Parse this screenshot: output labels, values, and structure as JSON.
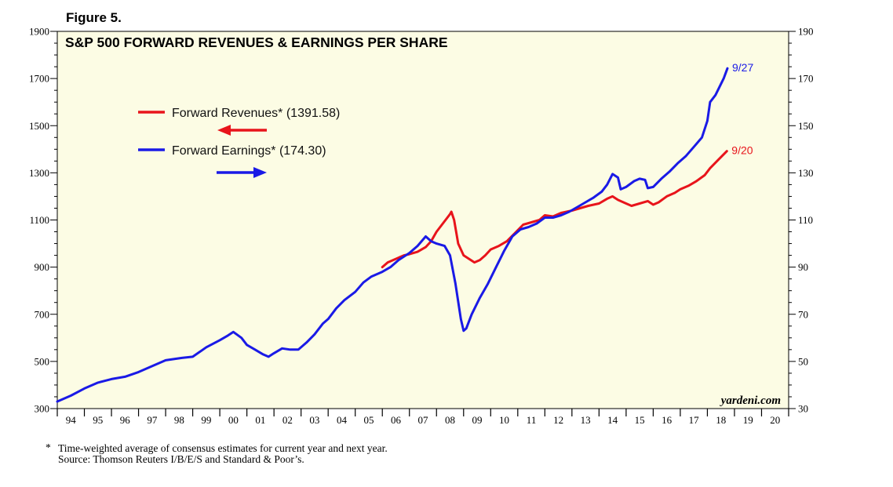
{
  "figure_label": "Figure 5.",
  "footnote_star": "*",
  "footnote": "Time-weighted average of consensus estimates for current year and next year.",
  "source": "Source: Thomson Reuters I/B/E/S and Standard & Poor’s.",
  "brand": "yardeni.com",
  "colors": {
    "revenues": "#e8141b",
    "earnings": "#1a1ae6",
    "plot_bg": "#fcfce4"
  },
  "chart_data": {
    "type": "line",
    "title": "S&P 500 FORWARD REVENUES & EARNINGS PER SHARE",
    "x_range": [
      1994.0,
      2021.0
    ],
    "y_left_range": [
      300,
      1900
    ],
    "y_right_range": [
      30,
      190
    ],
    "y_left_ticks": [
      "300",
      "500",
      "700",
      "900",
      "1100",
      "1300",
      "1500",
      "1700",
      "1900"
    ],
    "y_right_ticks": [
      "30",
      "50",
      "70",
      "90",
      "110",
      "130",
      "150",
      "170",
      "190"
    ],
    "x_tick_labels": [
      "94",
      "95",
      "96",
      "97",
      "98",
      "99",
      "00",
      "01",
      "02",
      "03",
      "04",
      "05",
      "06",
      "07",
      "08",
      "09",
      "10",
      "11",
      "12",
      "13",
      "14",
      "15",
      "16",
      "17",
      "18",
      "19",
      "20"
    ],
    "legend": [
      {
        "name": "Forward Revenues* (1391.58)",
        "axis": "left",
        "arrow": "left"
      },
      {
        "name": "Forward Earnings* (174.30)",
        "axis": "right",
        "arrow": "right"
      }
    ],
    "series": [
      {
        "name": "Forward Revenues",
        "axis": "left",
        "end_label": "9/20",
        "x": [
          2006.0,
          2006.2,
          2006.5,
          2006.8,
          2007.0,
          2007.3,
          2007.6,
          2007.8,
          2008.0,
          2008.2,
          2008.4,
          2008.5,
          2008.55,
          2008.65,
          2008.8,
          2009.0,
          2009.2,
          2009.4,
          2009.6,
          2009.8,
          2010.0,
          2010.3,
          2010.6,
          2010.9,
          2011.2,
          2011.5,
          2011.8,
          2012.0,
          2012.3,
          2012.6,
          2013.0,
          2013.3,
          2013.6,
          2014.0,
          2014.3,
          2014.5,
          2014.7,
          2015.0,
          2015.2,
          2015.5,
          2015.8,
          2016.0,
          2016.2,
          2016.5,
          2016.8,
          2017.0,
          2017.3,
          2017.6,
          2017.9,
          2018.1,
          2018.4,
          2018.72
        ],
        "y": [
          900,
          920,
          935,
          950,
          955,
          965,
          985,
          1010,
          1050,
          1080,
          1110,
          1125,
          1135,
          1100,
          1000,
          950,
          935,
          920,
          930,
          950,
          975,
          990,
          1010,
          1045,
          1080,
          1090,
          1100,
          1120,
          1115,
          1130,
          1140,
          1150,
          1160,
          1170,
          1190,
          1200,
          1185,
          1170,
          1160,
          1170,
          1180,
          1165,
          1175,
          1200,
          1215,
          1230,
          1245,
          1265,
          1290,
          1320,
          1355,
          1392
        ]
      },
      {
        "name": "Forward Earnings",
        "axis": "right",
        "end_label": "9/27",
        "x": [
          1994.0,
          1994.5,
          1995.0,
          1995.5,
          1996.0,
          1996.5,
          1997.0,
          1997.5,
          1998.0,
          1998.3,
          1998.6,
          1999.0,
          1999.5,
          2000.0,
          2000.3,
          2000.5,
          2000.8,
          2001.0,
          2001.3,
          2001.6,
          2001.8,
          2002.0,
          2002.3,
          2002.6,
          2002.9,
          2003.2,
          2003.5,
          2003.8,
          2004.0,
          2004.3,
          2004.6,
          2005.0,
          2005.3,
          2005.6,
          2006.0,
          2006.3,
          2006.6,
          2007.0,
          2007.3,
          2007.6,
          2007.8,
          2008.0,
          2008.3,
          2008.5,
          2008.7,
          2008.9,
          2009.0,
          2009.1,
          2009.3,
          2009.6,
          2009.9,
          2010.2,
          2010.5,
          2010.8,
          2011.1,
          2011.4,
          2011.7,
          2012.0,
          2012.3,
          2012.6,
          2012.9,
          2013.2,
          2013.5,
          2013.8,
          2014.1,
          2014.3,
          2014.5,
          2014.7,
          2014.8,
          2015.0,
          2015.3,
          2015.5,
          2015.7,
          2015.8,
          2016.0,
          2016.3,
          2016.6,
          2016.9,
          2017.2,
          2017.5,
          2017.8,
          2018.0,
          2018.1,
          2018.3,
          2018.6,
          2018.74
        ],
        "y": [
          33,
          35.5,
          38.5,
          41,
          42.5,
          43.5,
          45.5,
          48,
          50.5,
          51,
          51.5,
          52,
          56,
          59,
          61,
          62.5,
          60,
          57,
          55,
          53,
          52,
          53.5,
          55.5,
          55,
          55,
          58,
          61.5,
          66,
          68,
          72.5,
          76,
          79.5,
          83.5,
          86,
          88,
          90,
          93,
          96,
          99,
          103,
          101,
          100,
          99,
          95,
          83,
          68,
          63,
          64,
          70,
          77,
          83,
          90,
          97,
          103,
          106,
          107,
          108.5,
          111,
          111,
          112,
          113.5,
          115.5,
          117.5,
          119.5,
          122,
          125,
          129.5,
          128,
          123,
          124,
          126.5,
          127.5,
          127,
          123.5,
          124,
          127.5,
          130.5,
          134,
          137,
          141,
          145,
          152,
          160,
          163,
          170,
          174.3
        ]
      }
    ]
  }
}
